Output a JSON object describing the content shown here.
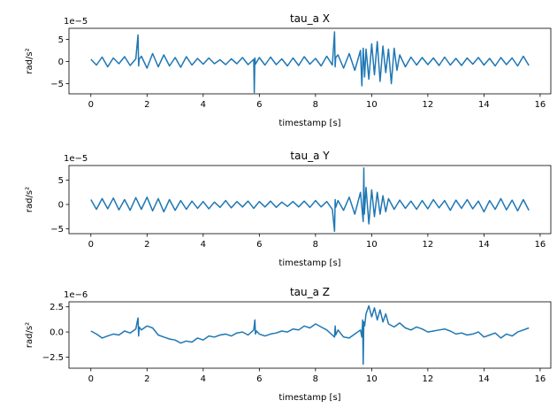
{
  "colors": {
    "line": "#1f77b4",
    "axes": "#000000",
    "background": "#ffffff"
  },
  "chart_data": [
    {
      "type": "line",
      "title": "tau_a X",
      "xlabel": "timestamp [s]",
      "ylabel": "rad/s²",
      "offset_label": "1e−5",
      "scale": 1e-05,
      "xlim": [
        -0.78,
        16.38
      ],
      "ylim": [
        -7.3,
        7.5
      ],
      "xticks": [
        0,
        2,
        4,
        6,
        8,
        10,
        12,
        14,
        16
      ],
      "yticks": [
        -5,
        0,
        5
      ],
      "grid": false,
      "series": [
        {
          "x": [
            0.0,
            0.2,
            0.4,
            0.6,
            0.8,
            1.0,
            1.2,
            1.4,
            1.6,
            1.68,
            1.7,
            1.72,
            1.8,
            2.0,
            2.2,
            2.4,
            2.6,
            2.8,
            3.0,
            3.2,
            3.4,
            3.6,
            3.8,
            4.0,
            4.2,
            4.4,
            4.6,
            4.8,
            5.0,
            5.2,
            5.4,
            5.6,
            5.8,
            5.82,
            5.84,
            5.86,
            6.0,
            6.2,
            6.4,
            6.6,
            6.8,
            7.0,
            7.2,
            7.4,
            7.6,
            7.8,
            8.0,
            8.2,
            8.4,
            8.6,
            8.68,
            8.7,
            8.72,
            8.8,
            9.0,
            9.2,
            9.4,
            9.6,
            9.65,
            9.7,
            9.75,
            9.8,
            9.9,
            10.0,
            10.1,
            10.2,
            10.3,
            10.4,
            10.5,
            10.6,
            10.7,
            10.8,
            10.9,
            11.0,
            11.2,
            11.4,
            11.6,
            11.8,
            12.0,
            12.2,
            12.4,
            12.6,
            12.8,
            13.0,
            13.2,
            13.4,
            13.6,
            13.8,
            14.0,
            14.2,
            14.4,
            14.6,
            14.8,
            15.0,
            15.2,
            15.4,
            15.6
          ],
          "y": [
            0.5,
            -0.8,
            1.0,
            -1.2,
            0.8,
            -0.5,
            1.1,
            -0.9,
            0.6,
            6.0,
            -1.0,
            0.5,
            1.2,
            -1.5,
            1.8,
            -1.2,
            1.5,
            -1.0,
            0.9,
            -1.3,
            1.1,
            -0.8,
            0.7,
            -0.6,
            0.8,
            -0.5,
            0.4,
            -0.7,
            0.6,
            -0.5,
            0.9,
            -0.7,
            0.5,
            -7.0,
            0.8,
            -0.6,
            0.9,
            -0.8,
            1.0,
            -0.7,
            0.6,
            -1.0,
            0.8,
            -0.9,
            1.1,
            -0.6,
            0.7,
            -1.0,
            1.2,
            -0.8,
            6.7,
            -1.2,
            0.9,
            1.5,
            -1.5,
            1.8,
            -2.0,
            2.5,
            -5.5,
            3.0,
            -3.5,
            2.8,
            -4.0,
            4.0,
            -3.0,
            4.5,
            -4.5,
            3.5,
            -2.5,
            2.8,
            -5.0,
            3.0,
            -2.0,
            1.5,
            -1.2,
            1.0,
            -0.8,
            0.9,
            -0.7,
            0.8,
            -0.9,
            1.0,
            -0.8,
            0.7,
            -0.9,
            0.8,
            -0.6,
            0.9,
            -0.8,
            0.7,
            -1.0,
            0.9,
            -0.7,
            0.8,
            -1.0,
            1.2,
            -0.9
          ]
        }
      ]
    },
    {
      "type": "line",
      "title": "tau_a Y",
      "xlabel": "timestamp [s]",
      "ylabel": "rad/s²",
      "offset_label": "1e−5",
      "scale": 1e-05,
      "xlim": [
        -0.78,
        16.38
      ],
      "ylim": [
        -6.0,
        8.0
      ],
      "xticks": [
        0,
        2,
        4,
        6,
        8,
        10,
        12,
        14,
        16
      ],
      "yticks": [
        -5,
        0,
        5
      ],
      "grid": false,
      "series": [
        {
          "x": [
            0.0,
            0.2,
            0.4,
            0.6,
            0.8,
            1.0,
            1.2,
            1.4,
            1.6,
            1.8,
            2.0,
            2.2,
            2.4,
            2.6,
            2.8,
            3.0,
            3.2,
            3.4,
            3.6,
            3.8,
            4.0,
            4.2,
            4.4,
            4.6,
            4.8,
            5.0,
            5.2,
            5.4,
            5.6,
            5.8,
            6.0,
            6.2,
            6.4,
            6.6,
            6.8,
            7.0,
            7.2,
            7.4,
            7.6,
            7.8,
            8.0,
            8.2,
            8.4,
            8.6,
            8.68,
            8.7,
            8.72,
            8.8,
            9.0,
            9.2,
            9.4,
            9.6,
            9.7,
            9.72,
            9.74,
            9.8,
            9.9,
            10.0,
            10.1,
            10.2,
            10.3,
            10.4,
            10.5,
            10.6,
            10.8,
            11.0,
            11.2,
            11.4,
            11.6,
            11.8,
            12.0,
            12.2,
            12.4,
            12.6,
            12.8,
            13.0,
            13.2,
            13.4,
            13.6,
            13.8,
            14.0,
            14.2,
            14.4,
            14.6,
            14.8,
            15.0,
            15.2,
            15.4,
            15.6
          ],
          "y": [
            1.0,
            -1.0,
            1.2,
            -0.9,
            1.3,
            -1.1,
            1.0,
            -1.2,
            1.4,
            -1.0,
            1.5,
            -1.3,
            1.2,
            -1.5,
            1.0,
            -1.2,
            0.8,
            -1.0,
            0.7,
            -0.8,
            0.6,
            -0.9,
            0.5,
            -0.6,
            0.8,
            -0.7,
            0.6,
            -0.5,
            0.7,
            -0.8,
            0.6,
            -0.5,
            0.7,
            -0.6,
            0.5,
            -0.4,
            0.6,
            -0.5,
            0.7,
            -0.6,
            0.8,
            -0.5,
            0.6,
            -1.0,
            -5.5,
            1.0,
            -0.6,
            0.8,
            -1.2,
            1.5,
            -2.0,
            2.5,
            -3.5,
            7.5,
            -2.0,
            3.5,
            -4.0,
            3.0,
            -2.5,
            2.5,
            -2.0,
            1.8,
            -1.5,
            1.2,
            -1.0,
            0.9,
            -0.8,
            0.7,
            -1.0,
            0.8,
            -0.9,
            1.0,
            -0.7,
            0.8,
            -1.2,
            0.9,
            -0.8,
            1.0,
            -0.9,
            0.7,
            -1.5,
            0.8,
            -1.0,
            1.2,
            -1.1,
            0.9,
            -1.3,
            1.0,
            -1.2
          ]
        }
      ]
    },
    {
      "type": "line",
      "title": "tau_a Z",
      "xlabel": "timestamp [s]",
      "ylabel": "rad/s²",
      "offset_label": "1e−6",
      "scale": 1e-06,
      "xlim": [
        -0.78,
        16.38
      ],
      "ylim": [
        -3.6,
        3.0
      ],
      "xticks": [
        0,
        2,
        4,
        6,
        8,
        10,
        12,
        14,
        16
      ],
      "yticks": [
        -2.5,
        0.0,
        2.5
      ],
      "ytick_labels": [
        "−2.5",
        "0.0",
        "2.5"
      ],
      "grid": false,
      "series": [
        {
          "x": [
            0.0,
            0.2,
            0.4,
            0.6,
            0.8,
            1.0,
            1.2,
            1.4,
            1.6,
            1.68,
            1.7,
            1.72,
            1.8,
            2.0,
            2.2,
            2.4,
            2.6,
            2.8,
            3.0,
            3.2,
            3.4,
            3.6,
            3.8,
            4.0,
            4.2,
            4.4,
            4.6,
            4.8,
            5.0,
            5.2,
            5.4,
            5.6,
            5.8,
            5.84,
            5.86,
            5.9,
            6.0,
            6.2,
            6.4,
            6.6,
            6.8,
            7.0,
            7.2,
            7.4,
            7.6,
            7.8,
            8.0,
            8.2,
            8.4,
            8.6,
            8.68,
            8.7,
            8.72,
            8.8,
            9.0,
            9.2,
            9.4,
            9.6,
            9.65,
            9.68,
            9.7,
            9.72,
            9.75,
            9.8,
            9.9,
            10.0,
            10.1,
            10.2,
            10.3,
            10.4,
            10.5,
            10.6,
            10.8,
            11.0,
            11.2,
            11.4,
            11.6,
            11.8,
            12.0,
            12.2,
            12.4,
            12.6,
            12.8,
            13.0,
            13.2,
            13.4,
            13.6,
            13.8,
            14.0,
            14.2,
            14.4,
            14.6,
            14.8,
            15.0,
            15.2,
            15.4,
            15.6
          ],
          "y": [
            0.1,
            -0.2,
            -0.6,
            -0.4,
            -0.2,
            -0.3,
            0.1,
            -0.1,
            0.3,
            1.4,
            -0.4,
            0.5,
            0.2,
            0.6,
            0.4,
            -0.3,
            -0.5,
            -0.7,
            -0.8,
            -1.1,
            -0.9,
            -1.0,
            -0.6,
            -0.8,
            -0.4,
            -0.5,
            -0.3,
            -0.2,
            -0.4,
            -0.1,
            0.0,
            -0.3,
            0.2,
            1.2,
            -0.2,
            0.1,
            -0.2,
            -0.4,
            -0.2,
            -0.1,
            0.1,
            0.0,
            0.3,
            0.2,
            0.6,
            0.4,
            0.8,
            0.5,
            0.2,
            -0.3,
            -0.5,
            0.6,
            -0.3,
            0.2,
            -0.5,
            -0.6,
            -0.2,
            0.2,
            -0.5,
            1.2,
            -3.2,
            1.0,
            0.6,
            1.8,
            2.6,
            1.5,
            2.4,
            1.2,
            2.2,
            1.0,
            1.8,
            0.8,
            0.5,
            0.9,
            0.4,
            0.2,
            0.5,
            0.3,
            0.0,
            0.1,
            0.2,
            0.3,
            0.1,
            -0.2,
            -0.1,
            -0.3,
            -0.2,
            0.0,
            -0.5,
            -0.3,
            -0.1,
            -0.6,
            -0.2,
            -0.4,
            0.0,
            0.2,
            0.4
          ]
        }
      ]
    }
  ]
}
